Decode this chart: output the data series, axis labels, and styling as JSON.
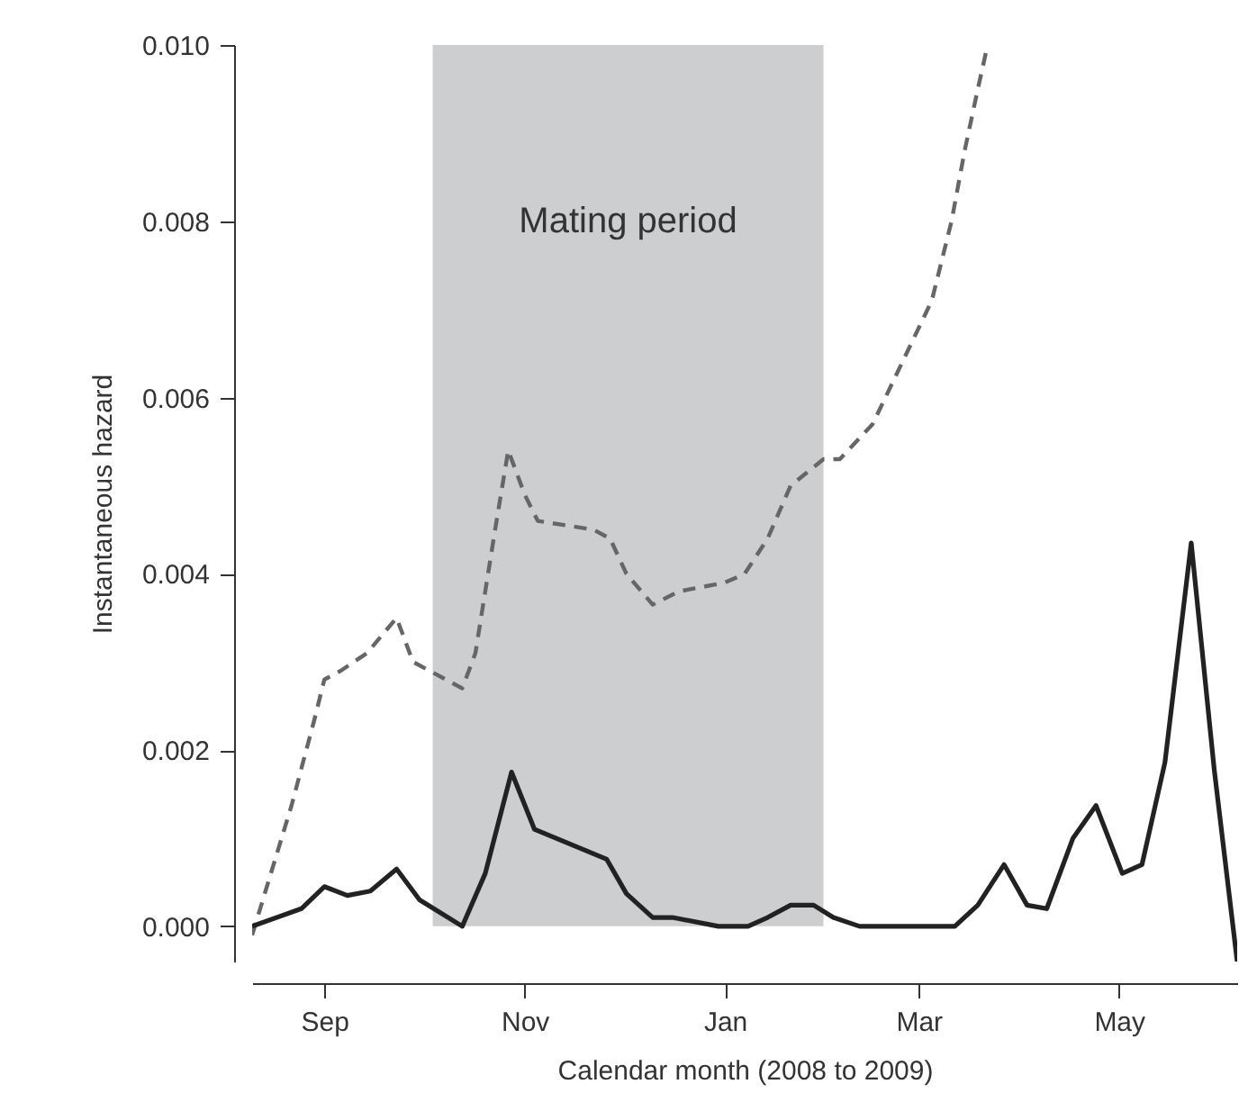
{
  "chart_data": {
    "type": "line",
    "xlabel": "Calendar month (2008 to 2009)",
    "ylabel": "Instantaneous hazard",
    "xlim": [
      "2008-08-10",
      "2009-06-06"
    ],
    "xticks": [
      {
        "value": "2008-09-01",
        "label": "Sep"
      },
      {
        "value": "2008-11-01",
        "label": "Nov"
      },
      {
        "value": "2009-01-01",
        "label": "Jan"
      },
      {
        "value": "2009-03-01",
        "label": "Mar"
      },
      {
        "value": "2009-05-01",
        "label": "May"
      }
    ],
    "ylim": [
      -0.0004,
      0.01
    ],
    "yticks": [
      {
        "value": 0,
        "label": "0.000"
      },
      {
        "value": 0.002,
        "label": "0.002"
      },
      {
        "value": 0.004,
        "label": "0.004"
      },
      {
        "value": 0.006,
        "label": "0.006"
      },
      {
        "value": 0.008,
        "label": "0.008"
      },
      {
        "value": 0.01,
        "label": "0.010"
      }
    ],
    "grid": false,
    "marker": "none",
    "bands": [
      {
        "axis": "x",
        "from": "2008-10-04",
        "to": "2009-01-31",
        "label": "Mating period",
        "color": "#cdced0"
      }
    ],
    "series": [
      {
        "color": "#666666",
        "line_style": "dashed",
        "x": [
          "2008-08-10",
          "2008-08-22",
          "2008-08-29",
          "2008-09-01",
          "2008-09-06",
          "2008-09-14",
          "2008-09-23",
          "2008-09-28",
          "2008-10-03",
          "2008-10-13",
          "2008-10-17",
          "2008-10-23",
          "2008-10-27",
          "2008-11-01",
          "2008-11-05",
          "2008-11-22",
          "2008-11-27",
          "2008-12-02",
          "2008-12-10",
          "2008-12-18",
          "2009-01-01",
          "2009-01-07",
          "2009-01-14",
          "2009-01-21",
          "2009-01-31",
          "2009-02-05",
          "2009-02-15",
          "2009-02-24",
          "2009-03-05",
          "2009-03-11",
          "2009-03-15",
          "2009-03-19",
          "2009-03-22"
        ],
        "values": [
          -0.0001,
          0.00137,
          0.00235,
          0.0028,
          0.0029,
          0.0031,
          0.0035,
          0.003,
          0.0029,
          0.0027,
          0.0031,
          0.0045,
          0.0054,
          0.0049,
          0.0046,
          0.0045,
          0.0044,
          0.004,
          0.00365,
          0.0038,
          0.0039,
          0.004,
          0.0044,
          0.005,
          0.0053,
          0.0053,
          0.0057,
          0.0064,
          0.0071,
          0.008,
          0.0088,
          0.0095,
          0.01
        ]
      },
      {
        "color": "#222222",
        "line_style": "solid",
        "x": [
          "2008-08-10",
          "2008-08-25",
          "2008-09-01",
          "2008-09-08",
          "2008-09-15",
          "2008-09-23",
          "2008-09-30",
          "2008-10-13",
          "2008-10-20",
          "2008-10-28",
          "2008-11-04",
          "2008-11-26",
          "2008-12-02",
          "2008-12-10",
          "2008-12-16",
          "2008-12-30",
          "2009-01-08",
          "2009-01-14",
          "2009-01-21",
          "2009-01-28",
          "2009-02-03",
          "2009-02-11",
          "2009-03-03",
          "2009-03-06",
          "2009-03-12",
          "2009-03-19",
          "2009-03-27",
          "2009-04-03",
          "2009-04-09",
          "2009-04-17",
          "2009-04-24",
          "2009-05-02",
          "2009-05-08",
          "2009-05-15",
          "2009-05-23",
          "2009-05-30",
          "2009-06-06"
        ],
        "values": [
          0.0,
          0.0002,
          0.00045,
          0.00035,
          0.0004,
          0.00065,
          0.0003,
          0.0,
          0.0006,
          0.00175,
          0.0011,
          0.00076,
          0.00037,
          0.0001,
          0.0001,
          0.0,
          0.0,
          0.0001,
          0.00024,
          0.00024,
          0.0001,
          0.0,
          0.0,
          0.0,
          0.0,
          0.00024,
          0.0007,
          0.00024,
          0.0002,
          0.001,
          0.00137,
          0.0006,
          0.0007,
          0.00186,
          0.00435,
          0.00178,
          -0.0004
        ]
      }
    ]
  }
}
